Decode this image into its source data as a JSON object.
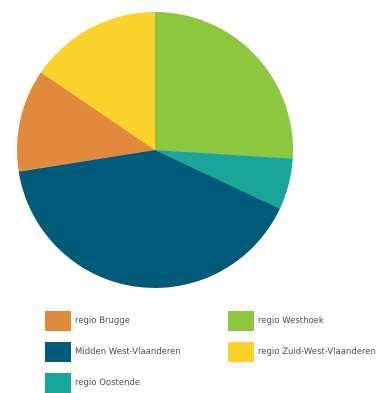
{
  "chart_data": {
    "type": "pie",
    "title": "",
    "slices": [
      {
        "label": "regio Westhoek",
        "value": 26.0,
        "color": "#8dc63f"
      },
      {
        "label": "regio Oostende",
        "value": 6.0,
        "color": "#1aa59a"
      },
      {
        "label": "Midden West-Vlaanderen",
        "value": 40.5,
        "color": "#005a7a"
      },
      {
        "label": "regio Brugge",
        "value": 12.0,
        "color": "#e28a3c"
      },
      {
        "label": "regio Zuid-West-Vlaanderen",
        "value": 15.5,
        "color": "#fcd22d"
      }
    ],
    "legend": {
      "position": "bottom",
      "items": [
        {
          "label": "regio Brugge",
          "color": "#e28a3c"
        },
        {
          "label": "regio Westhoek",
          "color": "#8dc63f"
        },
        {
          "label": "Midden West-Vlaanderen",
          "color": "#005a7a"
        },
        {
          "label": "regio Zuid-West-Vlaanderen",
          "color": "#fcd22d"
        },
        {
          "label": "regio Oostende",
          "color": "#1aa59a"
        }
      ]
    }
  }
}
